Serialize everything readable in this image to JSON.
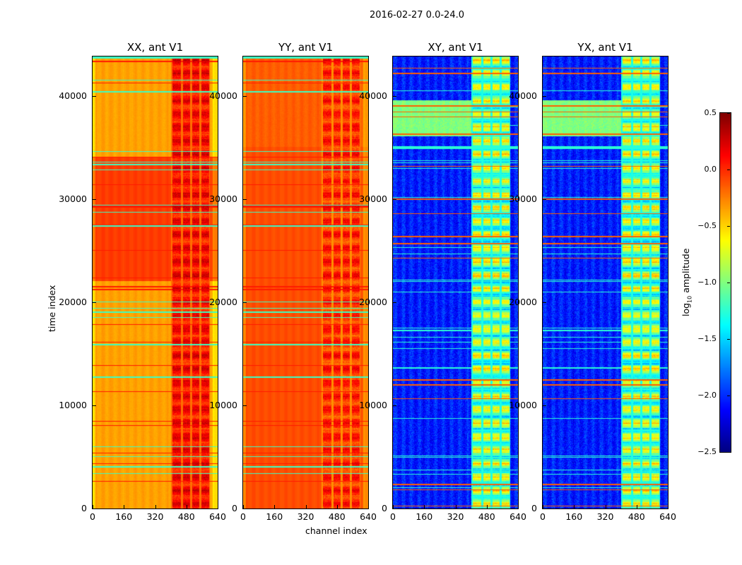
{
  "suptitle": "2016-02-27 0.0-24.0",
  "chart_data": {
    "type": "heatmap",
    "title": "2016-02-27 0.0-24.0",
    "xlabel": "channel index",
    "ylabel": "time index",
    "xlim": [
      0,
      640
    ],
    "ylim": [
      0,
      43800
    ],
    "x_ticks": [
      "0",
      "160",
      "320",
      "480",
      "640"
    ],
    "x_tick_values": [
      0,
      160,
      320,
      480,
      640
    ],
    "y_ticks": [
      "0",
      "10000",
      "20000",
      "30000",
      "40000"
    ],
    "y_tick_values": [
      0,
      10000,
      20000,
      30000,
      40000
    ],
    "colormap": "jet",
    "colorbar": {
      "label_prefix": "log",
      "label_sub": "10",
      "label_suffix": " amplitude",
      "range": [
        -2.5,
        0.5
      ],
      "ticks": [
        "0.5",
        "0.0",
        "−0.5",
        "−1.0",
        "−1.5",
        "−2.0",
        "−2.5"
      ],
      "tick_values": [
        0.5,
        0.0,
        -0.5,
        -1.0,
        -1.5,
        -2.0,
        -2.5
      ]
    },
    "panels": [
      {
        "title": "XX, ant V1",
        "kind": "parallel",
        "base_log_amp": -0.35,
        "high_rows": [
          22000,
          34000
        ],
        "high_rows_log_amp": -0.05,
        "band_channels": [
          400,
          600
        ],
        "band_log_amp": 0.1
      },
      {
        "title": "YY, ant V1",
        "kind": "parallel",
        "base_log_amp": -0.15,
        "high_rows": [
          0,
          35000
        ],
        "high_rows_log_amp": -0.1,
        "band_channels": [
          400,
          600
        ],
        "band_log_amp": 0.0
      },
      {
        "title": "XY, ant V1",
        "kind": "cross",
        "base_log_amp": -2.05,
        "high_rows": [
          36000,
          39500
        ],
        "high_rows_log_amp": -1.0,
        "band_channels": [
          400,
          600
        ],
        "band_log_amp": -1.0
      },
      {
        "title": "YX, ant V1",
        "kind": "cross",
        "base_log_amp": -2.05,
        "high_rows": [
          36000,
          39500
        ],
        "high_rows_log_amp": -1.0,
        "band_channels": [
          400,
          600
        ],
        "band_log_amp": -1.0
      }
    ]
  }
}
